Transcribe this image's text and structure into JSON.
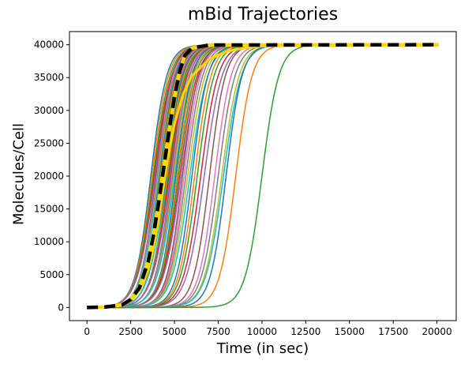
{
  "chart_data": {
    "type": "line",
    "title": "mBid Trajectories",
    "xlabel": "Time (in sec)",
    "ylabel": "Molecules/Cell",
    "xlim": [
      0,
      20200
    ],
    "ylim": [
      0,
      40000
    ],
    "xticks": [
      0,
      2500,
      5000,
      7500,
      10000,
      12500,
      15000,
      17500,
      20000
    ],
    "yticks": [
      0,
      5000,
      10000,
      15000,
      20000,
      25000,
      30000,
      35000,
      40000
    ],
    "xtick_labels": [
      "0",
      "2500",
      "5000",
      "7500",
      "10000",
      "12500",
      "15000",
      "17500",
      "20000"
    ],
    "ytick_labels": [
      "0",
      "5000",
      "10000",
      "15000",
      "20000",
      "25000",
      "30000",
      "35000",
      "40000"
    ],
    "grid": false,
    "legend": "none",
    "series_note_visible": false,
    "trajectory_midpoints_sec": [
      3650,
      3720,
      3790,
      3850,
      3900,
      3950,
      4000,
      4040,
      4080,
      4120,
      4160,
      4200,
      4240,
      4280,
      4320,
      4360,
      4400,
      4440,
      4480,
      4520,
      4560,
      4600,
      4650,
      4700,
      4750,
      4800,
      4850,
      4900,
      4960,
      5020,
      5080,
      5150,
      5220,
      5300,
      5380,
      5460,
      5550,
      5650,
      5760,
      5880,
      6000,
      6150,
      6300,
      6500,
      6700,
      7000,
      7300,
      7500,
      7700,
      7800,
      7950,
      8500,
      10000
    ],
    "trajectory_colors": [
      "#1f77b4",
      "#ff7f0e",
      "#2ca02c",
      "#d62728",
      "#9467bd",
      "#8c564b",
      "#e377c2",
      "#7f7f7f",
      "#bcbd22",
      "#17becf"
    ],
    "trajectory_max": 40000,
    "mean_curve": {
      "color": "#000000",
      "style": "dashed",
      "points": [
        [
          0,
          0
        ],
        [
          1000,
          60
        ],
        [
          2000,
          400
        ],
        [
          2500,
          1200
        ],
        [
          3000,
          3000
        ],
        [
          3500,
          7000
        ],
        [
          3800,
          11000
        ],
        [
          4100,
          16000
        ],
        [
          4400,
          21500
        ],
        [
          4700,
          27000
        ],
        [
          5000,
          32000
        ],
        [
          5300,
          36000
        ],
        [
          5600,
          38400
        ],
        [
          6000,
          39500
        ],
        [
          7000,
          39950
        ],
        [
          20100,
          40000
        ]
      ]
    },
    "highlight_curve": {
      "color": "#ffd700",
      "points": [
        [
          0,
          0
        ],
        [
          1000,
          60
        ],
        [
          2000,
          350
        ],
        [
          2500,
          1000
        ],
        [
          3000,
          2600
        ],
        [
          3500,
          5800
        ],
        [
          3800,
          9000
        ],
        [
          4100,
          13500
        ],
        [
          4400,
          19000
        ],
        [
          4700,
          24000
        ],
        [
          5000,
          28000
        ],
        [
          5500,
          32500
        ],
        [
          6000,
          35300
        ],
        [
          7000,
          37800
        ],
        [
          8000,
          39000
        ],
        [
          9000,
          39500
        ],
        [
          10000,
          39800
        ],
        [
          20100,
          40000
        ]
      ]
    }
  }
}
